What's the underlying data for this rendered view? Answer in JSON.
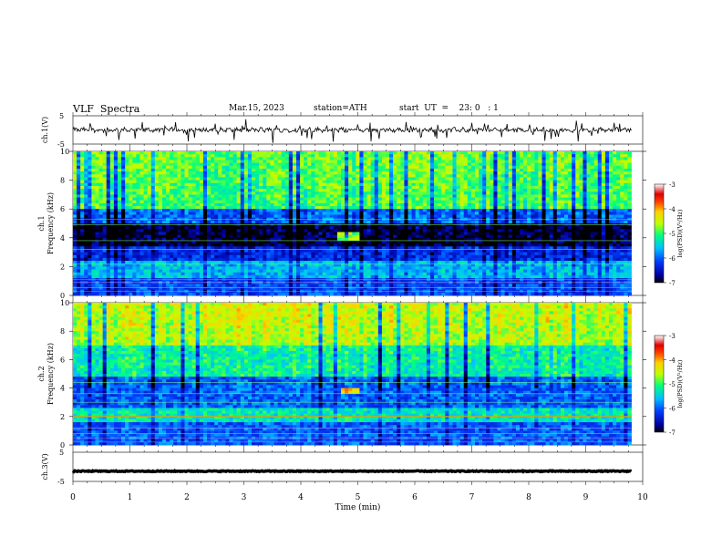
{
  "header": {
    "title": "VLF  Spectra",
    "date": "Mar.15, 2023",
    "station": "station=ATH",
    "start": "start  UT  =    23: 0   : 1"
  },
  "chart_data": {
    "type": "heatmap",
    "panels": [
      {
        "id": "ch1-waveform",
        "type": "line",
        "ylabel": "ch.1(V)",
        "yticks": [
          "5",
          "-5"
        ],
        "ylim": [
          -5,
          5
        ],
        "level": 0,
        "description_values": "noisy trace around 0 V with sparse negative spikes"
      },
      {
        "id": "ch1-spectrogram",
        "type": "heatmap",
        "ylabel": "ch.1",
        "ylabel2": "Frequency (kHz)",
        "yticks": [
          "0",
          "2",
          "4",
          "6",
          "8",
          "10"
        ],
        "ylim": [
          0,
          10
        ]
      },
      {
        "id": "ch2-spectrogram",
        "type": "heatmap",
        "ylabel": "ch.2",
        "ylabel2": "Frequency (kHz)",
        "yticks": [
          "0",
          "2",
          "4",
          "6",
          "8",
          "10"
        ],
        "ylim": [
          0,
          10
        ]
      },
      {
        "id": "ch3-waveform",
        "type": "line",
        "ylabel": "ch.3(V)",
        "yticks": [
          "5",
          "-5"
        ],
        "ylim": [
          -5,
          5
        ],
        "level": -1.5
      }
    ],
    "x": {
      "label": "Time  (min)",
      "ticks": [
        "0",
        "1",
        "2",
        "3",
        "4",
        "5",
        "6",
        "7",
        "8",
        "9",
        "10"
      ],
      "lim": [
        0,
        10
      ],
      "data_end": 9.8
    },
    "colorbar": {
      "label": "log(PSD)(V²/Hz)",
      "ticks": [
        "-3",
        "-4",
        "-5",
        "-6",
        "-7"
      ],
      "range": [
        -7,
        -3
      ],
      "colors": [
        "#000000",
        "#0000a0",
        "#0040ff",
        "#00c0ff",
        "#00ff80",
        "#c0ff00",
        "#ffd000",
        "#ff4000",
        "#e00000",
        "#ffffff"
      ]
    },
    "features": {
      "ch1_dark_band_khz": [
        3.4,
        5.0
      ],
      "ch1_burst": {
        "t_min": [
          4.65,
          5.0
        ],
        "f_khz": [
          3.7,
          4.4
        ]
      },
      "ch2_burst": {
        "t_min": [
          4.7,
          5.0
        ],
        "f_khz": [
          3.6,
          4.1
        ]
      },
      "ch2_line_khz": 2.0
    }
  }
}
